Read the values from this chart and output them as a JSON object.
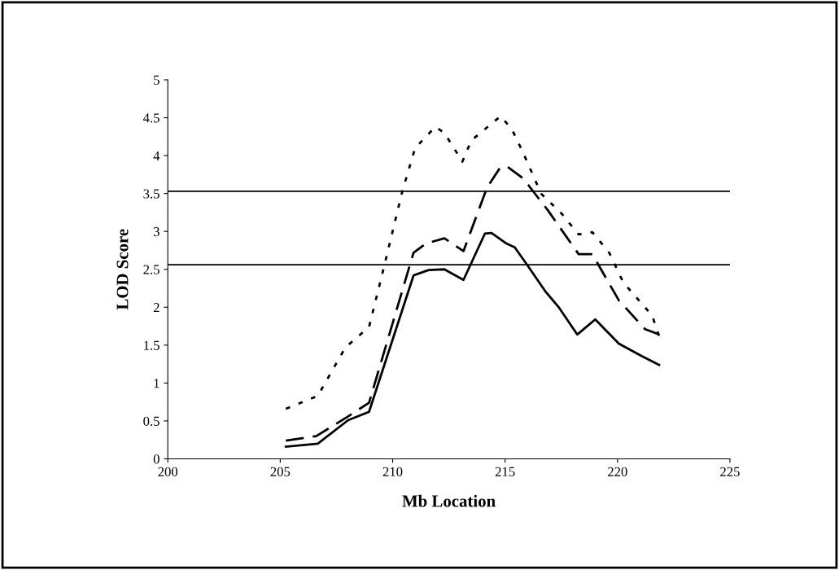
{
  "chart_data": {
    "type": "line",
    "xlabel": "Mb Location",
    "ylabel": "LOD Score",
    "xlim": [
      200,
      225
    ],
    "xticks": [
      200,
      205,
      210,
      215,
      220,
      225
    ],
    "ylim": [
      0,
      5
    ],
    "yticks": [
      0,
      0.5,
      1,
      1.5,
      2,
      2.5,
      3,
      3.5,
      4,
      4.5,
      5
    ],
    "grid": false,
    "legend": false,
    "marker": "none",
    "series": [
      {
        "color": "#000000",
        "line_style": "solid",
        "x": [
          205.25,
          206.67,
          208.02,
          208.95,
          210.93,
          211.6,
          212.3,
          213.15,
          214.1,
          214.4,
          215.06,
          215.43,
          215.93,
          216.79,
          217.41,
          218.21,
          219.01,
          220.06,
          221.11,
          221.85
        ],
        "values": [
          0.16,
          0.2,
          0.51,
          0.62,
          2.42,
          2.49,
          2.5,
          2.36,
          2.97,
          2.98,
          2.84,
          2.79,
          2.58,
          2.21,
          1.99,
          1.64,
          1.84,
          1.52,
          1.35,
          1.24
        ]
      },
      {
        "color": "#000000",
        "line_style": "dashed",
        "x": [
          205.25,
          206.6,
          208.02,
          208.95,
          210.93,
          211.48,
          212.3,
          213.15,
          214.2,
          214.8,
          215.12,
          215.8,
          216.9,
          218.27,
          218.88,
          220.06,
          221.23,
          221.85
        ],
        "values": [
          0.24,
          0.3,
          0.56,
          0.74,
          2.72,
          2.84,
          2.91,
          2.74,
          3.58,
          3.85,
          3.85,
          3.7,
          3.28,
          2.7,
          2.7,
          2.09,
          1.71,
          1.64
        ]
      },
      {
        "color": "#000000",
        "line_style": "dotted",
        "x": [
          205.25,
          206.67,
          207.9,
          208.95,
          209.63,
          210.43,
          211.0,
          211.9,
          212.3,
          213.1,
          213.5,
          214.8,
          215.3,
          215.8,
          216.6,
          217.53,
          218.27,
          218.88,
          219.63,
          220.25,
          221.54,
          221.85
        ],
        "values": [
          0.66,
          0.83,
          1.47,
          1.74,
          2.55,
          3.53,
          4.1,
          4.38,
          4.3,
          3.92,
          4.2,
          4.52,
          4.35,
          4.04,
          3.5,
          3.23,
          2.96,
          2.99,
          2.72,
          2.33,
          1.89,
          1.62
        ]
      }
    ],
    "ref_lines": [
      {
        "axis": "y",
        "value": 3.53,
        "color": "#000000",
        "line_style": "solid"
      },
      {
        "axis": "y",
        "value": 2.56,
        "color": "#000000",
        "line_style": "solid"
      }
    ]
  }
}
